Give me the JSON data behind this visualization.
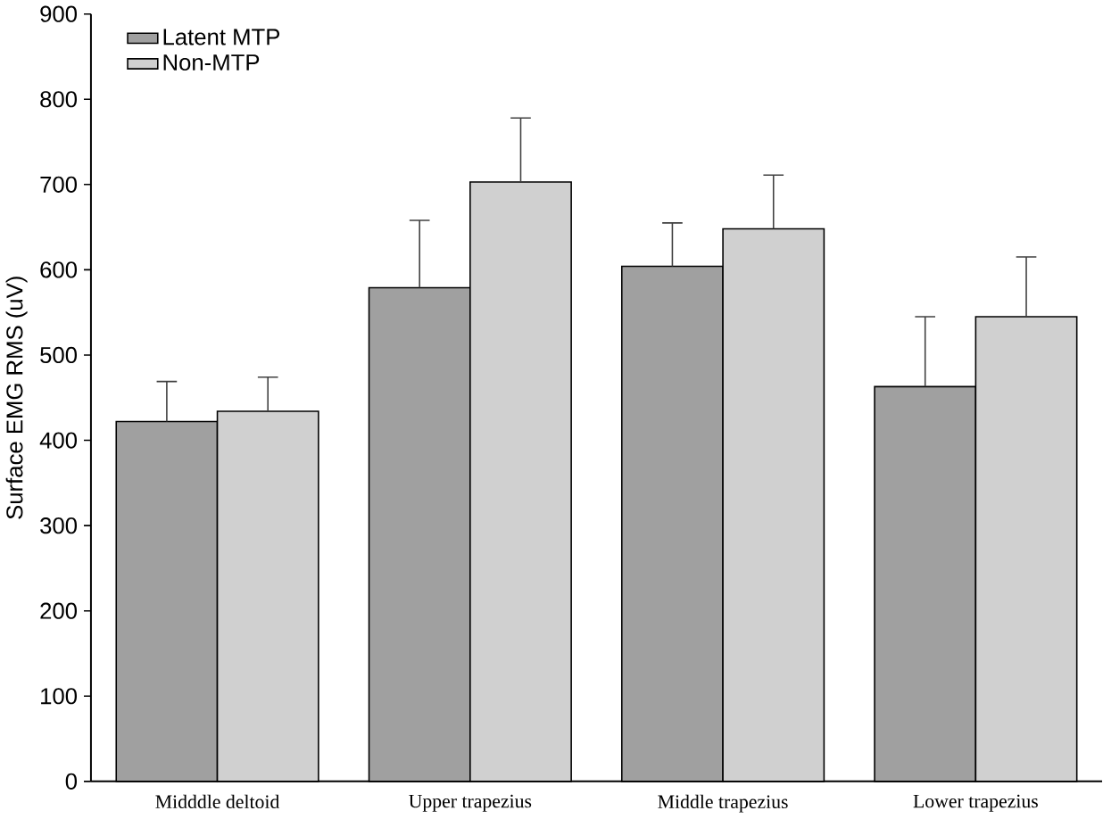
{
  "chart_data": {
    "type": "bar",
    "ylabel": "Surface EMG RMS (uV)",
    "categories": [
      "Midddle deltoid",
      "Upper trapezius",
      "Middle trapezius",
      "Lower trapezius"
    ],
    "series": [
      {
        "name": "Latent MTP",
        "color": "#a0a0a0",
        "values": [
          422,
          579,
          604,
          463
        ],
        "errors": [
          [
            422,
            469
          ],
          [
            579,
            658
          ],
          [
            604,
            655
          ],
          [
            463,
            545
          ]
        ]
      },
      {
        "name": "Non-MTP",
        "color": "#d0d0d0",
        "values": [
          434,
          703,
          648,
          545
        ],
        "errors": [
          [
            434,
            474
          ],
          [
            703,
            778
          ],
          [
            648,
            711
          ],
          [
            545,
            615
          ]
        ]
      }
    ],
    "ylim": [
      0,
      900
    ],
    "yticks": [
      0,
      100,
      200,
      300,
      400,
      500,
      600,
      700,
      800,
      900
    ],
    "legend": "top left",
    "grid": false
  }
}
